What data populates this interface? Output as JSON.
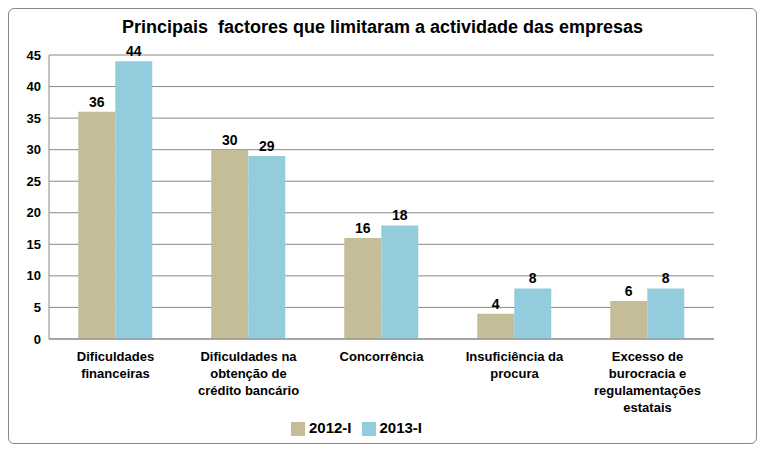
{
  "chart_data": {
    "type": "bar",
    "title": "Principais  factores que limitaram a actividade das empresas",
    "categories": [
      "Dificuldades financeiras",
      "Dificuldades na obtenção de crédito bancário",
      "Concorrência",
      "Insuficiência da procura",
      "Excesso de burocracia e regulamentações estatais"
    ],
    "series": [
      {
        "name": "2012-I",
        "color": "#C4BD97",
        "values": [
          36,
          30,
          16,
          4,
          6
        ]
      },
      {
        "name": "2013-I",
        "color": "#93CDDD",
        "values": [
          44,
          29,
          18,
          8,
          8
        ]
      }
    ],
    "ylim": [
      0,
      45
    ],
    "yticks": [
      0,
      5,
      10,
      15,
      20,
      25,
      30,
      35,
      40,
      45
    ],
    "grid": true,
    "legend": "bottom",
    "data_labels": true
  }
}
